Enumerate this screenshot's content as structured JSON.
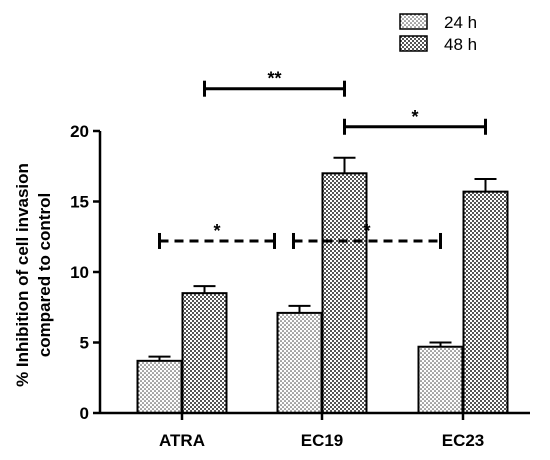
{
  "chart_data": {
    "type": "bar",
    "ylabel_lines": [
      "% Inhibition of cell invasion",
      "compared to control"
    ],
    "xlabel": "",
    "ylim": [
      0,
      20
    ],
    "yticks": [
      0,
      5,
      10,
      15,
      20
    ],
    "tick_labels": [
      "0",
      "5",
      "10",
      "15",
      "20"
    ],
    "categories": [
      "ATRA",
      "EC19",
      "EC23"
    ],
    "series": [
      {
        "name": "24 h",
        "pattern": "dots",
        "values": [
          3.7,
          7.1,
          4.7
        ],
        "errors": [
          0.3,
          0.5,
          0.3
        ]
      },
      {
        "name": "48 h",
        "pattern": "checker",
        "values": [
          8.5,
          17.0,
          15.7
        ],
        "errors": [
          0.5,
          1.1,
          0.9
        ]
      }
    ],
    "legend_position": "top-right",
    "grid": false,
    "significance": [
      {
        "label": "**",
        "style": "solid",
        "from": "ATRA 48 h",
        "to": "EC19 48 h",
        "y": 23
      },
      {
        "label": "*",
        "style": "solid",
        "from": "EC19 48 h",
        "to": "EC23 48 h",
        "y": 20.3
      },
      {
        "label": "*",
        "style": "dashed",
        "from": "ATRA 24 h",
        "to": "ATRA 48 h end",
        "y": 12.2
      },
      {
        "label": "*",
        "style": "dashed",
        "from": "EC19 24 h",
        "to": "EC23 24 h",
        "y": 12.2
      }
    ]
  }
}
